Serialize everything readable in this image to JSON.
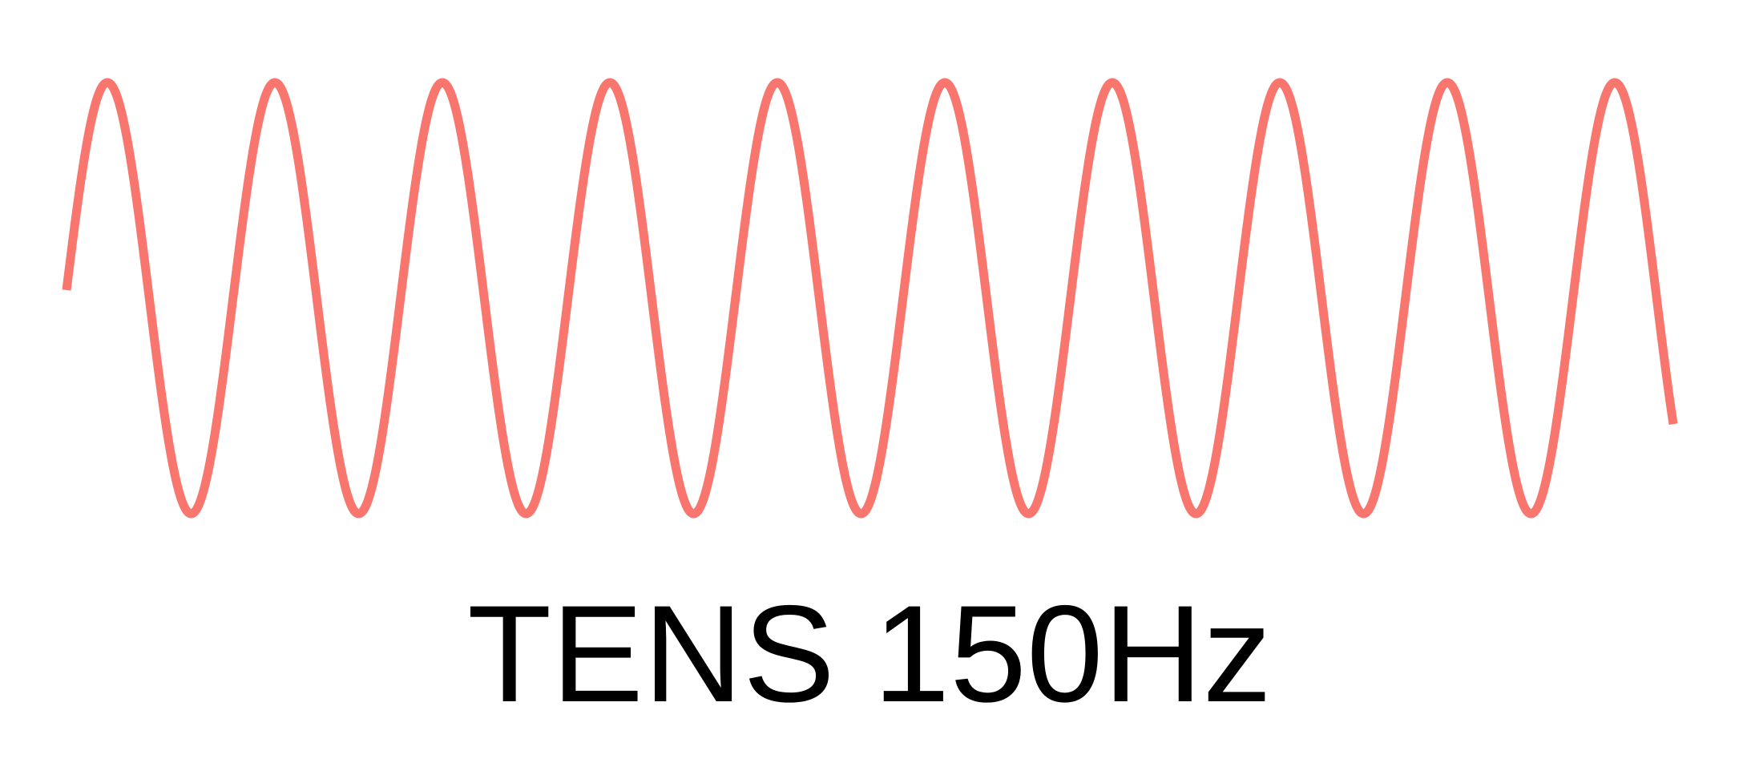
{
  "caption": "TENS 150Hz",
  "wave": {
    "color": "#F8766D"
  }
}
